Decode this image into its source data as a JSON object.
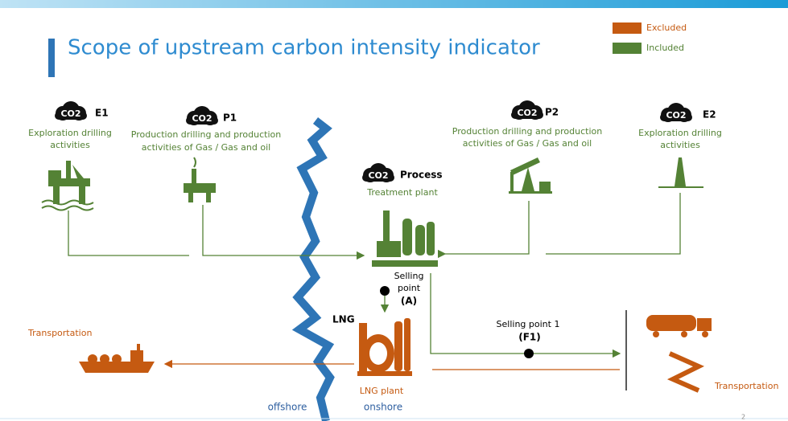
{
  "header": {
    "title": "Scope of upstream carbon intensity indicator"
  },
  "legend": [
    {
      "label": "Excluded",
      "color": "#c55a11"
    },
    {
      "label": "Included",
      "color": "#548235"
    }
  ],
  "badge": "CO2",
  "nodes": {
    "e1": {
      "code": "E1",
      "label": [
        "Exploration drilling",
        "activities"
      ]
    },
    "p1": {
      "code": "P1",
      "label": [
        "Production drilling and production",
        "activities of Gas / Gas and oil"
      ]
    },
    "p2": {
      "code": "P2",
      "label": [
        "Production drilling and production",
        "activities of Gas / Gas and oil"
      ]
    },
    "e2": {
      "code": "E2",
      "label": [
        "Exploration drilling",
        "activities"
      ]
    },
    "process": {
      "code": "Process",
      "label": "Treatment plant"
    },
    "lng": {
      "code": "LNG",
      "label": "LNG plant"
    }
  },
  "selling_point_a": {
    "label": [
      "Selling",
      "point"
    ],
    "code": "(A)"
  },
  "selling_point_f1": {
    "label": "Selling point 1",
    "code": "(F1)"
  },
  "transport_left": "Transportation",
  "transport_right": "Transportation",
  "zones": {
    "offshore": "offshore",
    "onshore": "onshore"
  },
  "page_number": "2"
}
